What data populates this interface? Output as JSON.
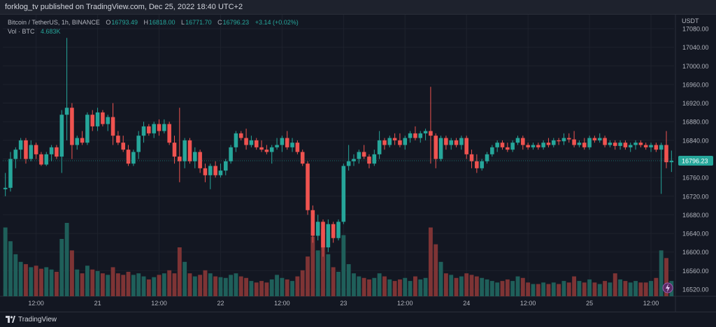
{
  "header": {
    "text": "forklog_tv published on TradingView.com, Dec 25, 2022 18:40 UTC+2"
  },
  "legend": {
    "symbol": "Bitcoin / TetherUS, 1h, BINANCE",
    "open_label": "O",
    "open": "16793.49",
    "high_label": "H",
    "high": "16818.00",
    "low_label": "L",
    "low": "16771.70",
    "close_label": "C",
    "close": "16796.23",
    "change": "+3.14 (+0.02%)",
    "volume_label": "Vol · BTC",
    "volume": "4.683K"
  },
  "footer": {
    "brand": "TradingView"
  },
  "colors": {
    "up": "#26a69a",
    "down": "#ef5350",
    "vol_up": "#1f5f5a",
    "vol_down": "#7e3435",
    "bg": "#131722",
    "grid": "#1e222d",
    "axis_text": "#b2b5be"
  },
  "chart_data": {
    "type": "candlestick",
    "title": "Bitcoin / TetherUS, 1h, BINANCE",
    "currency": "USDT",
    "ylim": [
      16505,
      17110
    ],
    "y_ticks": [
      17080,
      17040,
      17000,
      16960,
      16920,
      16880,
      16840,
      16800,
      16760,
      16720,
      16680,
      16640,
      16600,
      16560,
      16520
    ],
    "y_tick_labels": [
      "17080.00",
      "17040.00",
      "17000.00",
      "16960.00",
      "16920.00",
      "16880.00",
      "16840.00",
      "16800.00",
      "16760.00",
      "16720.00",
      "16680.00",
      "16640.00",
      "16600.00",
      "16560.00",
      "16520.00"
    ],
    "x_tick_labels": [
      {
        "label": "12:00",
        "index": 6
      },
      {
        "label": "21",
        "index": 18
      },
      {
        "label": "12:00",
        "index": 30
      },
      {
        "label": "22",
        "index": 42
      },
      {
        "label": "12:00",
        "index": 54
      },
      {
        "label": "23",
        "index": 66
      },
      {
        "label": "12:00",
        "index": 78
      },
      {
        "label": "24",
        "index": 90
      },
      {
        "label": "12:00",
        "index": 102
      },
      {
        "label": "25",
        "index": 114
      },
      {
        "label": "12:00",
        "index": 126
      }
    ],
    "last_price": 16796.23,
    "last_price_label": "16796.23",
    "candles": [
      {
        "o": 16735,
        "h": 16770,
        "l": 16720,
        "c": 16738,
        "v": 90
      },
      {
        "o": 16738,
        "h": 16815,
        "l": 16730,
        "c": 16800,
        "v": 72
      },
      {
        "o": 16800,
        "h": 16825,
        "l": 16780,
        "c": 16820,
        "v": 55
      },
      {
        "o": 16820,
        "h": 16845,
        "l": 16800,
        "c": 16840,
        "v": 45
      },
      {
        "o": 16840,
        "h": 16845,
        "l": 16790,
        "c": 16800,
        "v": 42
      },
      {
        "o": 16800,
        "h": 16840,
        "l": 16795,
        "c": 16830,
        "v": 38
      },
      {
        "o": 16830,
        "h": 16835,
        "l": 16800,
        "c": 16810,
        "v": 40
      },
      {
        "o": 16810,
        "h": 16815,
        "l": 16785,
        "c": 16788,
        "v": 36
      },
      {
        "o": 16788,
        "h": 16815,
        "l": 16785,
        "c": 16810,
        "v": 38
      },
      {
        "o": 16810,
        "h": 16830,
        "l": 16795,
        "c": 16825,
        "v": 35
      },
      {
        "o": 16825,
        "h": 16830,
        "l": 16800,
        "c": 16805,
        "v": 32
      },
      {
        "o": 16805,
        "h": 16905,
        "l": 16770,
        "c": 16895,
        "v": 75
      },
      {
        "o": 16895,
        "h": 17060,
        "l": 16840,
        "c": 16910,
        "v": 96
      },
      {
        "o": 16910,
        "h": 16920,
        "l": 16800,
        "c": 16830,
        "v": 60
      },
      {
        "o": 16830,
        "h": 16850,
        "l": 16820,
        "c": 16845,
        "v": 35
      },
      {
        "o": 16845,
        "h": 16860,
        "l": 16830,
        "c": 16835,
        "v": 30
      },
      {
        "o": 16835,
        "h": 16900,
        "l": 16830,
        "c": 16895,
        "v": 40
      },
      {
        "o": 16895,
        "h": 16905,
        "l": 16860,
        "c": 16870,
        "v": 35
      },
      {
        "o": 16870,
        "h": 16910,
        "l": 16860,
        "c": 16900,
        "v": 33
      },
      {
        "o": 16900,
        "h": 16905,
        "l": 16870,
        "c": 16875,
        "v": 30
      },
      {
        "o": 16875,
        "h": 16895,
        "l": 16860,
        "c": 16890,
        "v": 28
      },
      {
        "o": 16890,
        "h": 16920,
        "l": 16830,
        "c": 16850,
        "v": 38
      },
      {
        "o": 16850,
        "h": 16860,
        "l": 16830,
        "c": 16835,
        "v": 30
      },
      {
        "o": 16835,
        "h": 16850,
        "l": 16815,
        "c": 16820,
        "v": 28
      },
      {
        "o": 16820,
        "h": 16830,
        "l": 16785,
        "c": 16790,
        "v": 32
      },
      {
        "o": 16790,
        "h": 16820,
        "l": 16785,
        "c": 16815,
        "v": 28
      },
      {
        "o": 16815,
        "h": 16860,
        "l": 16800,
        "c": 16850,
        "v": 30
      },
      {
        "o": 16850,
        "h": 16880,
        "l": 16835,
        "c": 16870,
        "v": 26
      },
      {
        "o": 16870,
        "h": 16875,
        "l": 16850,
        "c": 16855,
        "v": 22
      },
      {
        "o": 16855,
        "h": 16880,
        "l": 16845,
        "c": 16875,
        "v": 25
      },
      {
        "o": 16875,
        "h": 16885,
        "l": 16850,
        "c": 16860,
        "v": 28
      },
      {
        "o": 16860,
        "h": 16885,
        "l": 16855,
        "c": 16875,
        "v": 30
      },
      {
        "o": 16875,
        "h": 16880,
        "l": 16830,
        "c": 16835,
        "v": 34
      },
      {
        "o": 16835,
        "h": 16850,
        "l": 16790,
        "c": 16805,
        "v": 30
      },
      {
        "o": 16805,
        "h": 16910,
        "l": 16750,
        "c": 16795,
        "v": 64
      },
      {
        "o": 16795,
        "h": 16845,
        "l": 16780,
        "c": 16840,
        "v": 45
      },
      {
        "o": 16840,
        "h": 16845,
        "l": 16790,
        "c": 16795,
        "v": 30
      },
      {
        "o": 16795,
        "h": 16825,
        "l": 16780,
        "c": 16815,
        "v": 26
      },
      {
        "o": 16815,
        "h": 16820,
        "l": 16770,
        "c": 16780,
        "v": 28
      },
      {
        "o": 16780,
        "h": 16790,
        "l": 16750,
        "c": 16765,
        "v": 34
      },
      {
        "o": 16765,
        "h": 16790,
        "l": 16735,
        "c": 16785,
        "v": 30
      },
      {
        "o": 16785,
        "h": 16795,
        "l": 16760,
        "c": 16765,
        "v": 26
      },
      {
        "o": 16765,
        "h": 16790,
        "l": 16760,
        "c": 16775,
        "v": 25
      },
      {
        "o": 16775,
        "h": 16800,
        "l": 16765,
        "c": 16795,
        "v": 24
      },
      {
        "o": 16795,
        "h": 16830,
        "l": 16790,
        "c": 16825,
        "v": 28
      },
      {
        "o": 16825,
        "h": 16860,
        "l": 16815,
        "c": 16855,
        "v": 30
      },
      {
        "o": 16855,
        "h": 16860,
        "l": 16840,
        "c": 16845,
        "v": 26
      },
      {
        "o": 16845,
        "h": 16865,
        "l": 16820,
        "c": 16830,
        "v": 24
      },
      {
        "o": 16830,
        "h": 16850,
        "l": 16825,
        "c": 16840,
        "v": 20
      },
      {
        "o": 16840,
        "h": 16845,
        "l": 16820,
        "c": 16825,
        "v": 18
      },
      {
        "o": 16825,
        "h": 16840,
        "l": 16815,
        "c": 16820,
        "v": 20
      },
      {
        "o": 16820,
        "h": 16830,
        "l": 16810,
        "c": 16815,
        "v": 18
      },
      {
        "o": 16815,
        "h": 16830,
        "l": 16790,
        "c": 16825,
        "v": 22
      },
      {
        "o": 16825,
        "h": 16845,
        "l": 16820,
        "c": 16830,
        "v": 28
      },
      {
        "o": 16830,
        "h": 16850,
        "l": 16815,
        "c": 16845,
        "v": 24
      },
      {
        "o": 16845,
        "h": 16860,
        "l": 16820,
        "c": 16825,
        "v": 22
      },
      {
        "o": 16825,
        "h": 16845,
        "l": 16815,
        "c": 16835,
        "v": 20
      },
      {
        "o": 16835,
        "h": 16840,
        "l": 16810,
        "c": 16815,
        "v": 26
      },
      {
        "o": 16815,
        "h": 16820,
        "l": 16785,
        "c": 16790,
        "v": 34
      },
      {
        "o": 16790,
        "h": 16795,
        "l": 16680,
        "c": 16690,
        "v": 52
      },
      {
        "o": 16690,
        "h": 16700,
        "l": 16620,
        "c": 16635,
        "v": 78
      },
      {
        "o": 16635,
        "h": 16680,
        "l": 16625,
        "c": 16665,
        "v": 60
      },
      {
        "o": 16665,
        "h": 16670,
        "l": 16590,
        "c": 16610,
        "v": 88
      },
      {
        "o": 16610,
        "h": 16670,
        "l": 16600,
        "c": 16660,
        "v": 55
      },
      {
        "o": 16660,
        "h": 16665,
        "l": 16620,
        "c": 16630,
        "v": 38
      },
      {
        "o": 16630,
        "h": 16670,
        "l": 16625,
        "c": 16665,
        "v": 32
      },
      {
        "o": 16665,
        "h": 16790,
        "l": 16660,
        "c": 16785,
        "v": 80
      },
      {
        "o": 16785,
        "h": 16830,
        "l": 16775,
        "c": 16795,
        "v": 42
      },
      {
        "o": 16795,
        "h": 16810,
        "l": 16785,
        "c": 16800,
        "v": 30
      },
      {
        "o": 16800,
        "h": 16820,
        "l": 16790,
        "c": 16815,
        "v": 26
      },
      {
        "o": 16815,
        "h": 16830,
        "l": 16800,
        "c": 16805,
        "v": 24
      },
      {
        "o": 16805,
        "h": 16810,
        "l": 16780,
        "c": 16790,
        "v": 22
      },
      {
        "o": 16790,
        "h": 16820,
        "l": 16785,
        "c": 16810,
        "v": 24
      },
      {
        "o": 16810,
        "h": 16860,
        "l": 16800,
        "c": 16840,
        "v": 30
      },
      {
        "o": 16840,
        "h": 16845,
        "l": 16820,
        "c": 16830,
        "v": 26
      },
      {
        "o": 16830,
        "h": 16850,
        "l": 16825,
        "c": 16845,
        "v": 22
      },
      {
        "o": 16845,
        "h": 16855,
        "l": 16830,
        "c": 16840,
        "v": 20
      },
      {
        "o": 16840,
        "h": 16855,
        "l": 16825,
        "c": 16830,
        "v": 22
      },
      {
        "o": 16830,
        "h": 16850,
        "l": 16820,
        "c": 16845,
        "v": 24
      },
      {
        "o": 16845,
        "h": 16860,
        "l": 16835,
        "c": 16855,
        "v": 20
      },
      {
        "o": 16855,
        "h": 16870,
        "l": 16840,
        "c": 16845,
        "v": 26
      },
      {
        "o": 16845,
        "h": 16860,
        "l": 16835,
        "c": 16855,
        "v": 22
      },
      {
        "o": 16855,
        "h": 16865,
        "l": 16840,
        "c": 16860,
        "v": 24
      },
      {
        "o": 16860,
        "h": 16955,
        "l": 16790,
        "c": 16850,
        "v": 90
      },
      {
        "o": 16850,
        "h": 16855,
        "l": 16780,
        "c": 16800,
        "v": 68
      },
      {
        "o": 16800,
        "h": 16850,
        "l": 16795,
        "c": 16845,
        "v": 45
      },
      {
        "o": 16845,
        "h": 16850,
        "l": 16820,
        "c": 16830,
        "v": 30
      },
      {
        "o": 16830,
        "h": 16845,
        "l": 16820,
        "c": 16840,
        "v": 28
      },
      {
        "o": 16840,
        "h": 16845,
        "l": 16825,
        "c": 16830,
        "v": 24
      },
      {
        "o": 16830,
        "h": 16850,
        "l": 16820,
        "c": 16845,
        "v": 26
      },
      {
        "o": 16845,
        "h": 16850,
        "l": 16800,
        "c": 16810,
        "v": 30
      },
      {
        "o": 16810,
        "h": 16820,
        "l": 16780,
        "c": 16795,
        "v": 28
      },
      {
        "o": 16795,
        "h": 16810,
        "l": 16770,
        "c": 16780,
        "v": 26
      },
      {
        "o": 16780,
        "h": 16800,
        "l": 16775,
        "c": 16795,
        "v": 24
      },
      {
        "o": 16795,
        "h": 16815,
        "l": 16790,
        "c": 16810,
        "v": 22
      },
      {
        "o": 16810,
        "h": 16830,
        "l": 16805,
        "c": 16825,
        "v": 20
      },
      {
        "o": 16825,
        "h": 16840,
        "l": 16815,
        "c": 16835,
        "v": 18
      },
      {
        "o": 16835,
        "h": 16840,
        "l": 16820,
        "c": 16825,
        "v": 20
      },
      {
        "o": 16825,
        "h": 16835,
        "l": 16815,
        "c": 16820,
        "v": 22
      },
      {
        "o": 16820,
        "h": 16840,
        "l": 16815,
        "c": 16835,
        "v": 20
      },
      {
        "o": 16835,
        "h": 16850,
        "l": 16830,
        "c": 16845,
        "v": 26
      },
      {
        "o": 16845,
        "h": 16850,
        "l": 16820,
        "c": 16830,
        "v": 24
      },
      {
        "o": 16830,
        "h": 16835,
        "l": 16820,
        "c": 16825,
        "v": 18
      },
      {
        "o": 16825,
        "h": 16835,
        "l": 16820,
        "c": 16830,
        "v": 16
      },
      {
        "o": 16830,
        "h": 16835,
        "l": 16820,
        "c": 16825,
        "v": 16
      },
      {
        "o": 16825,
        "h": 16840,
        "l": 16820,
        "c": 16835,
        "v": 18
      },
      {
        "o": 16835,
        "h": 16845,
        "l": 16825,
        "c": 16830,
        "v": 16
      },
      {
        "o": 16830,
        "h": 16845,
        "l": 16825,
        "c": 16840,
        "v": 18
      },
      {
        "o": 16840,
        "h": 16845,
        "l": 16830,
        "c": 16838,
        "v": 16
      },
      {
        "o": 16838,
        "h": 16855,
        "l": 16830,
        "c": 16845,
        "v": 20
      },
      {
        "o": 16845,
        "h": 16855,
        "l": 16835,
        "c": 16842,
        "v": 18
      },
      {
        "o": 16842,
        "h": 16860,
        "l": 16825,
        "c": 16830,
        "v": 26
      },
      {
        "o": 16830,
        "h": 16840,
        "l": 16825,
        "c": 16835,
        "v": 20
      },
      {
        "o": 16835,
        "h": 16845,
        "l": 16820,
        "c": 16825,
        "v": 18
      },
      {
        "o": 16825,
        "h": 16850,
        "l": 16820,
        "c": 16845,
        "v": 22
      },
      {
        "o": 16845,
        "h": 16850,
        "l": 16835,
        "c": 16840,
        "v": 18
      },
      {
        "o": 16840,
        "h": 16855,
        "l": 16835,
        "c": 16845,
        "v": 16
      },
      {
        "o": 16845,
        "h": 16850,
        "l": 16825,
        "c": 16830,
        "v": 20
      },
      {
        "o": 16830,
        "h": 16840,
        "l": 16825,
        "c": 16835,
        "v": 18
      },
      {
        "o": 16835,
        "h": 16840,
        "l": 16820,
        "c": 16828,
        "v": 30
      },
      {
        "o": 16828,
        "h": 16840,
        "l": 16820,
        "c": 16835,
        "v": 22
      },
      {
        "o": 16835,
        "h": 16840,
        "l": 16820,
        "c": 16825,
        "v": 20
      },
      {
        "o": 16825,
        "h": 16835,
        "l": 16815,
        "c": 16830,
        "v": 18
      },
      {
        "o": 16830,
        "h": 16840,
        "l": 16820,
        "c": 16835,
        "v": 20
      },
      {
        "o": 16835,
        "h": 16840,
        "l": 16825,
        "c": 16830,
        "v": 18
      },
      {
        "o": 16830,
        "h": 16835,
        "l": 16820,
        "c": 16825,
        "v": 18
      },
      {
        "o": 16825,
        "h": 16835,
        "l": 16815,
        "c": 16830,
        "v": 20
      },
      {
        "o": 16830,
        "h": 16835,
        "l": 16815,
        "c": 16820,
        "v": 24
      },
      {
        "o": 16820,
        "h": 16835,
        "l": 16725,
        "c": 16830,
        "v": 60
      },
      {
        "o": 16830,
        "h": 16860,
        "l": 16780,
        "c": 16793,
        "v": 50
      },
      {
        "o": 16793,
        "h": 16818,
        "l": 16772,
        "c": 16796,
        "v": 20
      }
    ]
  }
}
